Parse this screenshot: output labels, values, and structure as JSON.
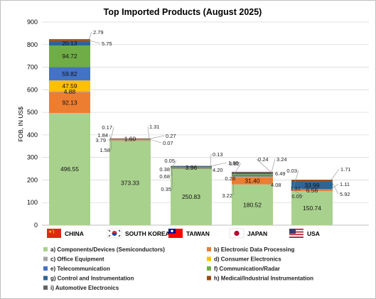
{
  "chart_data": {
    "type": "bar",
    "stacked": true,
    "title": "Top Imported Products (August 2025)",
    "ylabel": "FOB, IN US$",
    "xlabel": "",
    "ylim": [
      0,
      900
    ],
    "yticks": [
      0,
      100,
      200,
      300,
      400,
      500,
      600,
      700,
      800,
      900
    ],
    "grid": true,
    "legend_position": "bottom",
    "categories": [
      "CHINA",
      "SOUTH KOREA",
      "TAIWAN",
      "JAPAN",
      "USA"
    ],
    "category_flags": [
      "flag-china-icon",
      "flag-south-korea-icon",
      "flag-taiwan-icon",
      "flag-japan-icon",
      "flag-usa-icon"
    ],
    "series": [
      {
        "name": "a) Components/Devices (Semiconductors)",
        "color": "#a9d18e",
        "values": [
          496.55,
          373.33,
          250.83,
          180.52,
          150.74
        ]
      },
      {
        "name": "b) Electronic Data Processing",
        "color": "#ed7d31",
        "values": [
          92.13,
          1.58,
          0.35,
          31.4,
          6.56
        ]
      },
      {
        "name": "c) Office Equipment",
        "color": "#a5a5a5",
        "values": [
          4.88,
          3.79,
          0.68,
          3.22,
          0.05
        ]
      },
      {
        "name": "d) Consumer Electronics",
        "color": "#ffc000",
        "values": [
          47.59,
          1.84,
          0.38,
          0.28,
          1.31
        ]
      },
      {
        "name": "e) Telecommunication",
        "color": "#4472c4",
        "values": [
          59.82,
          0.17,
          0.05,
          6.82,
          0.03
        ]
      },
      {
        "name": "f) Communication/Radar",
        "color": "#70ad47",
        "values": [
          94.72,
          0.07,
          3.96,
          4.08,
          1.11
        ]
      },
      {
        "name": "g) Control and Instrumentation",
        "color": "#2e6496",
        "values": [
          20.13,
          1.6,
          4.2,
          6.49,
          33.99
        ]
      },
      {
        "name": "h) Medical/Industrial Instrumentation",
        "color": "#9e480e",
        "values": [
          5.75,
          0.27,
          1.68,
          0.24,
          5.92
        ]
      },
      {
        "name": "i) Automotive Electronics",
        "color": "#636363",
        "values": [
          2.79,
          1.31,
          0.13,
          3.24,
          1.71
        ]
      }
    ]
  }
}
